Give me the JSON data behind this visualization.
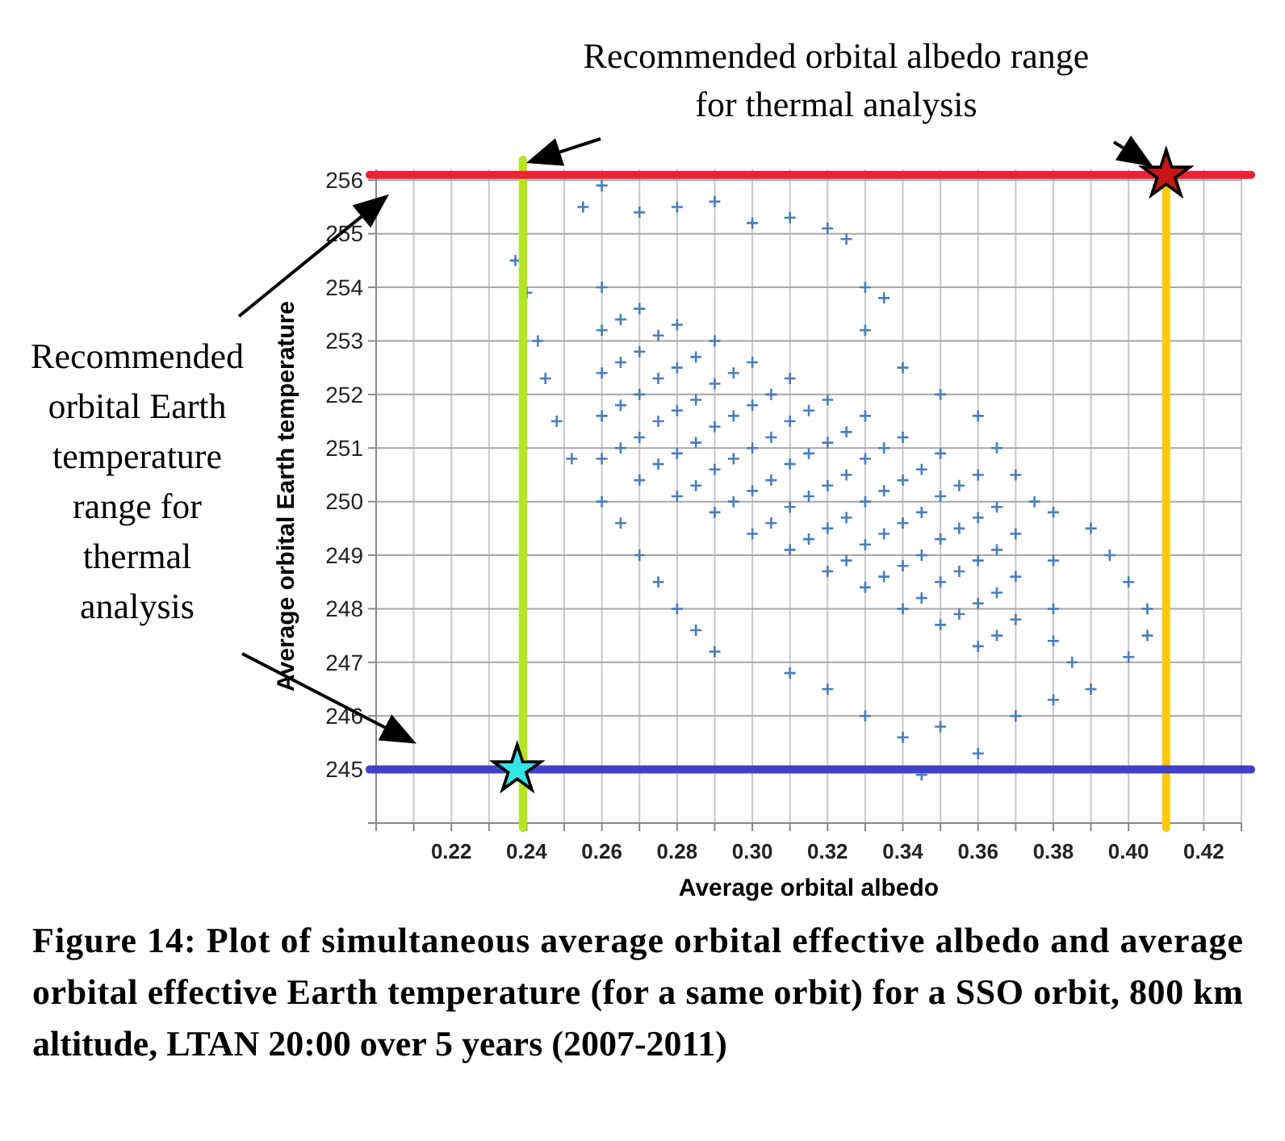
{
  "chart_data": {
    "type": "scatter",
    "xlabel": "Average orbital albedo",
    "ylabel": "Average orbital Earth temperature",
    "annotations": [
      "Recommended orbital albedo range for thermal analysis",
      "Recommended orbital Earth temperature range for thermal analysis",
      "Figure 14: Plot of simultaneous average orbital effective albedo and average orbital effective Earth temperature (for a same orbit) for a SSO orbit, 800 km altitude, LTAN 20:00 over 5 years (2007-2011)"
    ],
    "xlim": [
      0.2,
      0.43
    ],
    "xticks": [
      {
        "value": 0.2,
        "label": null
      },
      {
        "value": 0.21,
        "label": null
      },
      0.22,
      {
        "value": 0.23,
        "label": null
      },
      0.24,
      {
        "value": 0.25,
        "label": null
      },
      0.26,
      {
        "value": 0.27,
        "label": null
      },
      0.28,
      {
        "value": 0.29,
        "label": null
      },
      {
        "value": 0.3,
        "label": "0.30"
      },
      {
        "value": 0.31,
        "label": null
      },
      0.32,
      {
        "value": 0.33,
        "label": null
      },
      0.34,
      {
        "value": 0.35,
        "label": null
      },
      0.36,
      {
        "value": 0.37,
        "label": null
      },
      0.38,
      {
        "value": 0.39,
        "label": null
      },
      {
        "value": 0.4,
        "label": "0.40"
      },
      {
        "value": 0.41,
        "label": null
      },
      0.42,
      {
        "value": 0.43,
        "label": null
      }
    ],
    "ylim": [
      244,
      256.2
    ],
    "yticks": [
      {
        "value": 244,
        "label": null
      },
      245,
      246,
      247,
      248,
      249,
      250,
      251,
      252,
      253,
      254,
      255,
      256
    ],
    "grid": true,
    "marker": "cross",
    "ref_lines": [
      {
        "axis": "y",
        "value": 256.1,
        "color": "#ee2233"
      },
      {
        "axis": "y",
        "value": 245,
        "color": "#4040c8"
      },
      {
        "axis": "x",
        "value": 0.239,
        "color": "#b5e61d"
      },
      {
        "axis": "x",
        "value": 0.41,
        "color": "#ffc90e"
      }
    ],
    "series": [
      {
        "color": "#4a7ebb",
        "x": [
          0.237,
          0.24,
          0.243,
          0.245,
          0.248,
          0.252,
          0.26,
          0.265,
          0.27,
          0.275,
          0.28,
          0.285,
          0.29,
          0.255,
          0.26,
          0.27,
          0.28,
          0.29,
          0.3,
          0.31,
          0.32,
          0.325,
          0.33,
          0.335,
          0.33,
          0.34,
          0.35,
          0.36,
          0.365,
          0.37,
          0.375,
          0.38,
          0.39,
          0.395,
          0.4,
          0.405,
          0.405,
          0.4,
          0.31,
          0.32,
          0.33,
          0.34,
          0.345,
          0.35,
          0.36,
          0.37,
          0.38,
          0.39,
          0.385,
          0.26,
          0.26,
          0.26,
          0.26,
          0.26,
          0.27,
          0.27,
          0.27,
          0.27,
          0.27,
          0.28,
          0.28,
          0.28,
          0.28,
          0.28,
          0.29,
          0.29,
          0.29,
          0.29,
          0.29,
          0.3,
          0.3,
          0.3,
          0.3,
          0.3,
          0.31,
          0.31,
          0.31,
          0.31,
          0.31,
          0.32,
          0.32,
          0.32,
          0.32,
          0.32,
          0.33,
          0.33,
          0.33,
          0.33,
          0.33,
          0.34,
          0.34,
          0.34,
          0.34,
          0.34,
          0.35,
          0.35,
          0.35,
          0.35,
          0.35,
          0.36,
          0.36,
          0.36,
          0.36,
          0.36,
          0.37,
          0.37,
          0.37,
          0.38,
          0.38,
          0.38,
          0.265,
          0.265,
          0.265,
          0.265,
          0.275,
          0.275,
          0.275,
          0.275,
          0.285,
          0.285,
          0.285,
          0.285,
          0.295,
          0.295,
          0.295,
          0.295,
          0.305,
          0.305,
          0.305,
          0.305,
          0.315,
          0.315,
          0.315,
          0.315,
          0.325,
          0.325,
          0.325,
          0.325,
          0.335,
          0.335,
          0.335,
          0.335,
          0.345,
          0.345,
          0.345,
          0.345,
          0.355,
          0.355,
          0.355,
          0.355,
          0.365,
          0.365,
          0.365,
          0.365
        ],
        "values": [
          254.5,
          253.9,
          253,
          252.3,
          251.5,
          250.8,
          250,
          249.6,
          249,
          248.5,
          248,
          247.6,
          247.2,
          255.5,
          255.9,
          255.4,
          255.5,
          255.6,
          255.2,
          255.3,
          255.1,
          254.9,
          254,
          253.8,
          253.2,
          252.5,
          252,
          251.6,
          251,
          250.5,
          250,
          249.8,
          249.5,
          249,
          248.5,
          248,
          247.5,
          247.1,
          246.8,
          246.5,
          246,
          245.6,
          244.9,
          245.8,
          245.3,
          246,
          246.3,
          246.5,
          247,
          254,
          253.2,
          252.4,
          251.6,
          250.8,
          253.6,
          252.8,
          252,
          251.2,
          250.4,
          253.3,
          252.5,
          251.7,
          250.9,
          250.1,
          253,
          252.2,
          251.4,
          250.6,
          249.8,
          252.6,
          251.8,
          251,
          250.2,
          249.4,
          252.3,
          251.5,
          250.7,
          249.9,
          249.1,
          251.9,
          251.1,
          250.3,
          249.5,
          248.7,
          251.6,
          250.8,
          250,
          249.2,
          248.4,
          251.2,
          250.4,
          249.6,
          248.8,
          248,
          250.9,
          250.1,
          249.3,
          248.5,
          247.7,
          250.5,
          249.7,
          248.9,
          248.1,
          247.3,
          249.4,
          248.6,
          247.8,
          248.9,
          248,
          247.4,
          253.4,
          252.6,
          251.8,
          251,
          253.1,
          252.3,
          251.5,
          250.7,
          252.7,
          251.9,
          251.1,
          250.3,
          252.4,
          251.6,
          250.8,
          250,
          252,
          251.2,
          250.4,
          249.6,
          251.7,
          250.9,
          250.1,
          249.3,
          251.3,
          250.5,
          249.7,
          248.9,
          251,
          250.2,
          249.4,
          248.6,
          250.6,
          249.8,
          249,
          248.2,
          250.3,
          249.5,
          248.7,
          247.9,
          249.9,
          249.1,
          248.3,
          247.5
        ]
      },
      {
        "color": "#33e5e5",
        "marker": "star",
        "x": [
          0.2375
        ],
        "values": [
          245
        ]
      },
      {
        "color": "#c81414",
        "marker": "star",
        "x": [
          0.41
        ],
        "values": [
          256.1
        ]
      }
    ]
  }
}
